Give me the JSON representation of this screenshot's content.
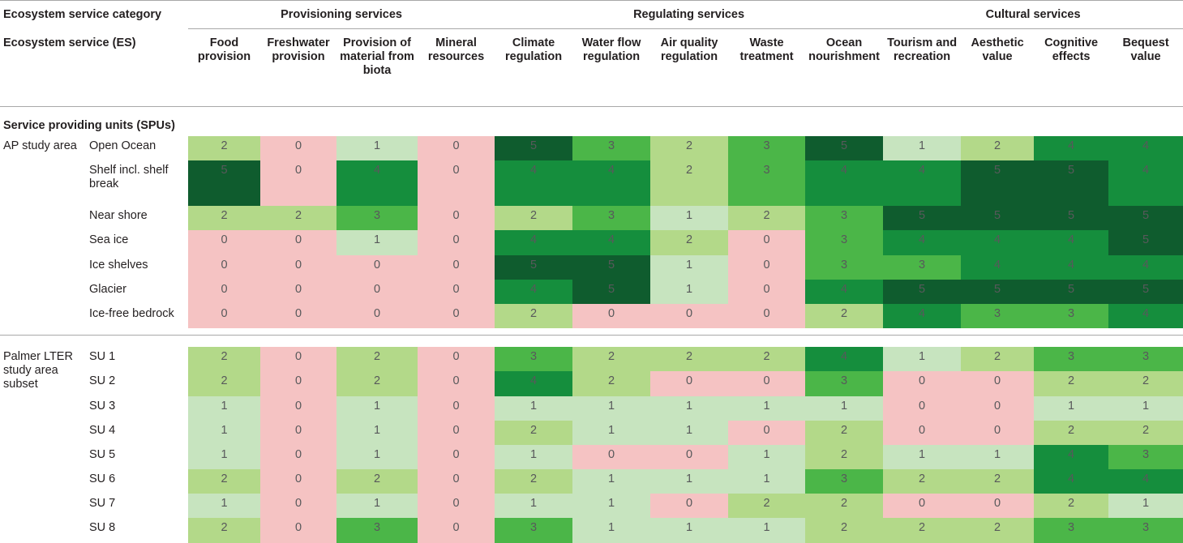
{
  "header": {
    "category_label": "Ecosystem service category",
    "es_label": "Ecosystem service (ES)",
    "spu_label": "Service providing units (SPUs)",
    "groups": [
      "Provisioning services",
      "Regulating services",
      "Cultural services"
    ],
    "services": [
      "Food provision",
      "Freshwater provision",
      "Provision of material from biota",
      "Mineral resources",
      "Climate regulation",
      "Water flow regulation",
      "Air quality regulation",
      "Waste treatment",
      "Ocean nourishment",
      "Tourism and recreation",
      "Aesthetic value",
      "Cognitive effects",
      "Bequest value"
    ]
  },
  "areas": [
    {
      "name": "AP study area",
      "rows": [
        {
          "spu": "Open Ocean",
          "values": [
            2,
            0,
            1,
            0,
            5,
            3,
            2,
            3,
            5,
            1,
            2,
            4,
            4
          ]
        },
        {
          "spu": "Shelf incl. shelf break",
          "values": [
            5,
            0,
            4,
            0,
            4,
            4,
            2,
            3,
            4,
            4,
            5,
            5,
            4
          ]
        },
        {
          "spu": "Near shore",
          "values": [
            2,
            2,
            3,
            0,
            2,
            3,
            1,
            2,
            3,
            5,
            5,
            5,
            5
          ]
        },
        {
          "spu": "Sea ice",
          "values": [
            0,
            0,
            1,
            0,
            4,
            4,
            2,
            0,
            3,
            4,
            4,
            4,
            5
          ]
        },
        {
          "spu": "Ice shelves",
          "values": [
            0,
            0,
            0,
            0,
            5,
            5,
            1,
            0,
            3,
            3,
            4,
            4,
            4
          ]
        },
        {
          "spu": "Glacier",
          "values": [
            0,
            0,
            0,
            0,
            4,
            5,
            1,
            0,
            4,
            5,
            5,
            5,
            5
          ]
        },
        {
          "spu": "Ice-free bedrock",
          "values": [
            0,
            0,
            0,
            0,
            2,
            0,
            0,
            0,
            2,
            4,
            3,
            3,
            4
          ]
        }
      ]
    },
    {
      "name": "Palmer LTER study area subset",
      "rows": [
        {
          "spu": "SU 1",
          "values": [
            2,
            0,
            2,
            0,
            3,
            2,
            2,
            2,
            4,
            1,
            2,
            3,
            3
          ]
        },
        {
          "spu": "SU 2",
          "values": [
            2,
            0,
            2,
            0,
            4,
            2,
            0,
            0,
            3,
            0,
            0,
            2,
            2
          ]
        },
        {
          "spu": "SU 3",
          "values": [
            1,
            0,
            1,
            0,
            1,
            1,
            1,
            1,
            1,
            0,
            0,
            1,
            1
          ]
        },
        {
          "spu": "SU 4",
          "values": [
            1,
            0,
            1,
            0,
            2,
            1,
            1,
            0,
            2,
            0,
            0,
            2,
            2
          ]
        },
        {
          "spu": "SU 5",
          "values": [
            1,
            0,
            1,
            0,
            1,
            0,
            0,
            1,
            2,
            1,
            1,
            4,
            3
          ]
        },
        {
          "spu": "SU 6",
          "values": [
            2,
            0,
            2,
            0,
            2,
            1,
            1,
            1,
            3,
            2,
            2,
            4,
            4
          ]
        },
        {
          "spu": "SU 7",
          "values": [
            1,
            0,
            1,
            0,
            1,
            1,
            0,
            2,
            2,
            0,
            0,
            2,
            1
          ]
        },
        {
          "spu": "SU 8",
          "values": [
            2,
            0,
            3,
            0,
            3,
            1,
            1,
            1,
            2,
            2,
            2,
            3,
            3
          ]
        }
      ]
    }
  ],
  "colors": {
    "0": "#f5c3c3",
    "1": "#c7e4bf",
    "2": "#b3d989",
    "3": "#4bb648",
    "4": "#158e3d",
    "5": "#0f5c2e"
  }
}
